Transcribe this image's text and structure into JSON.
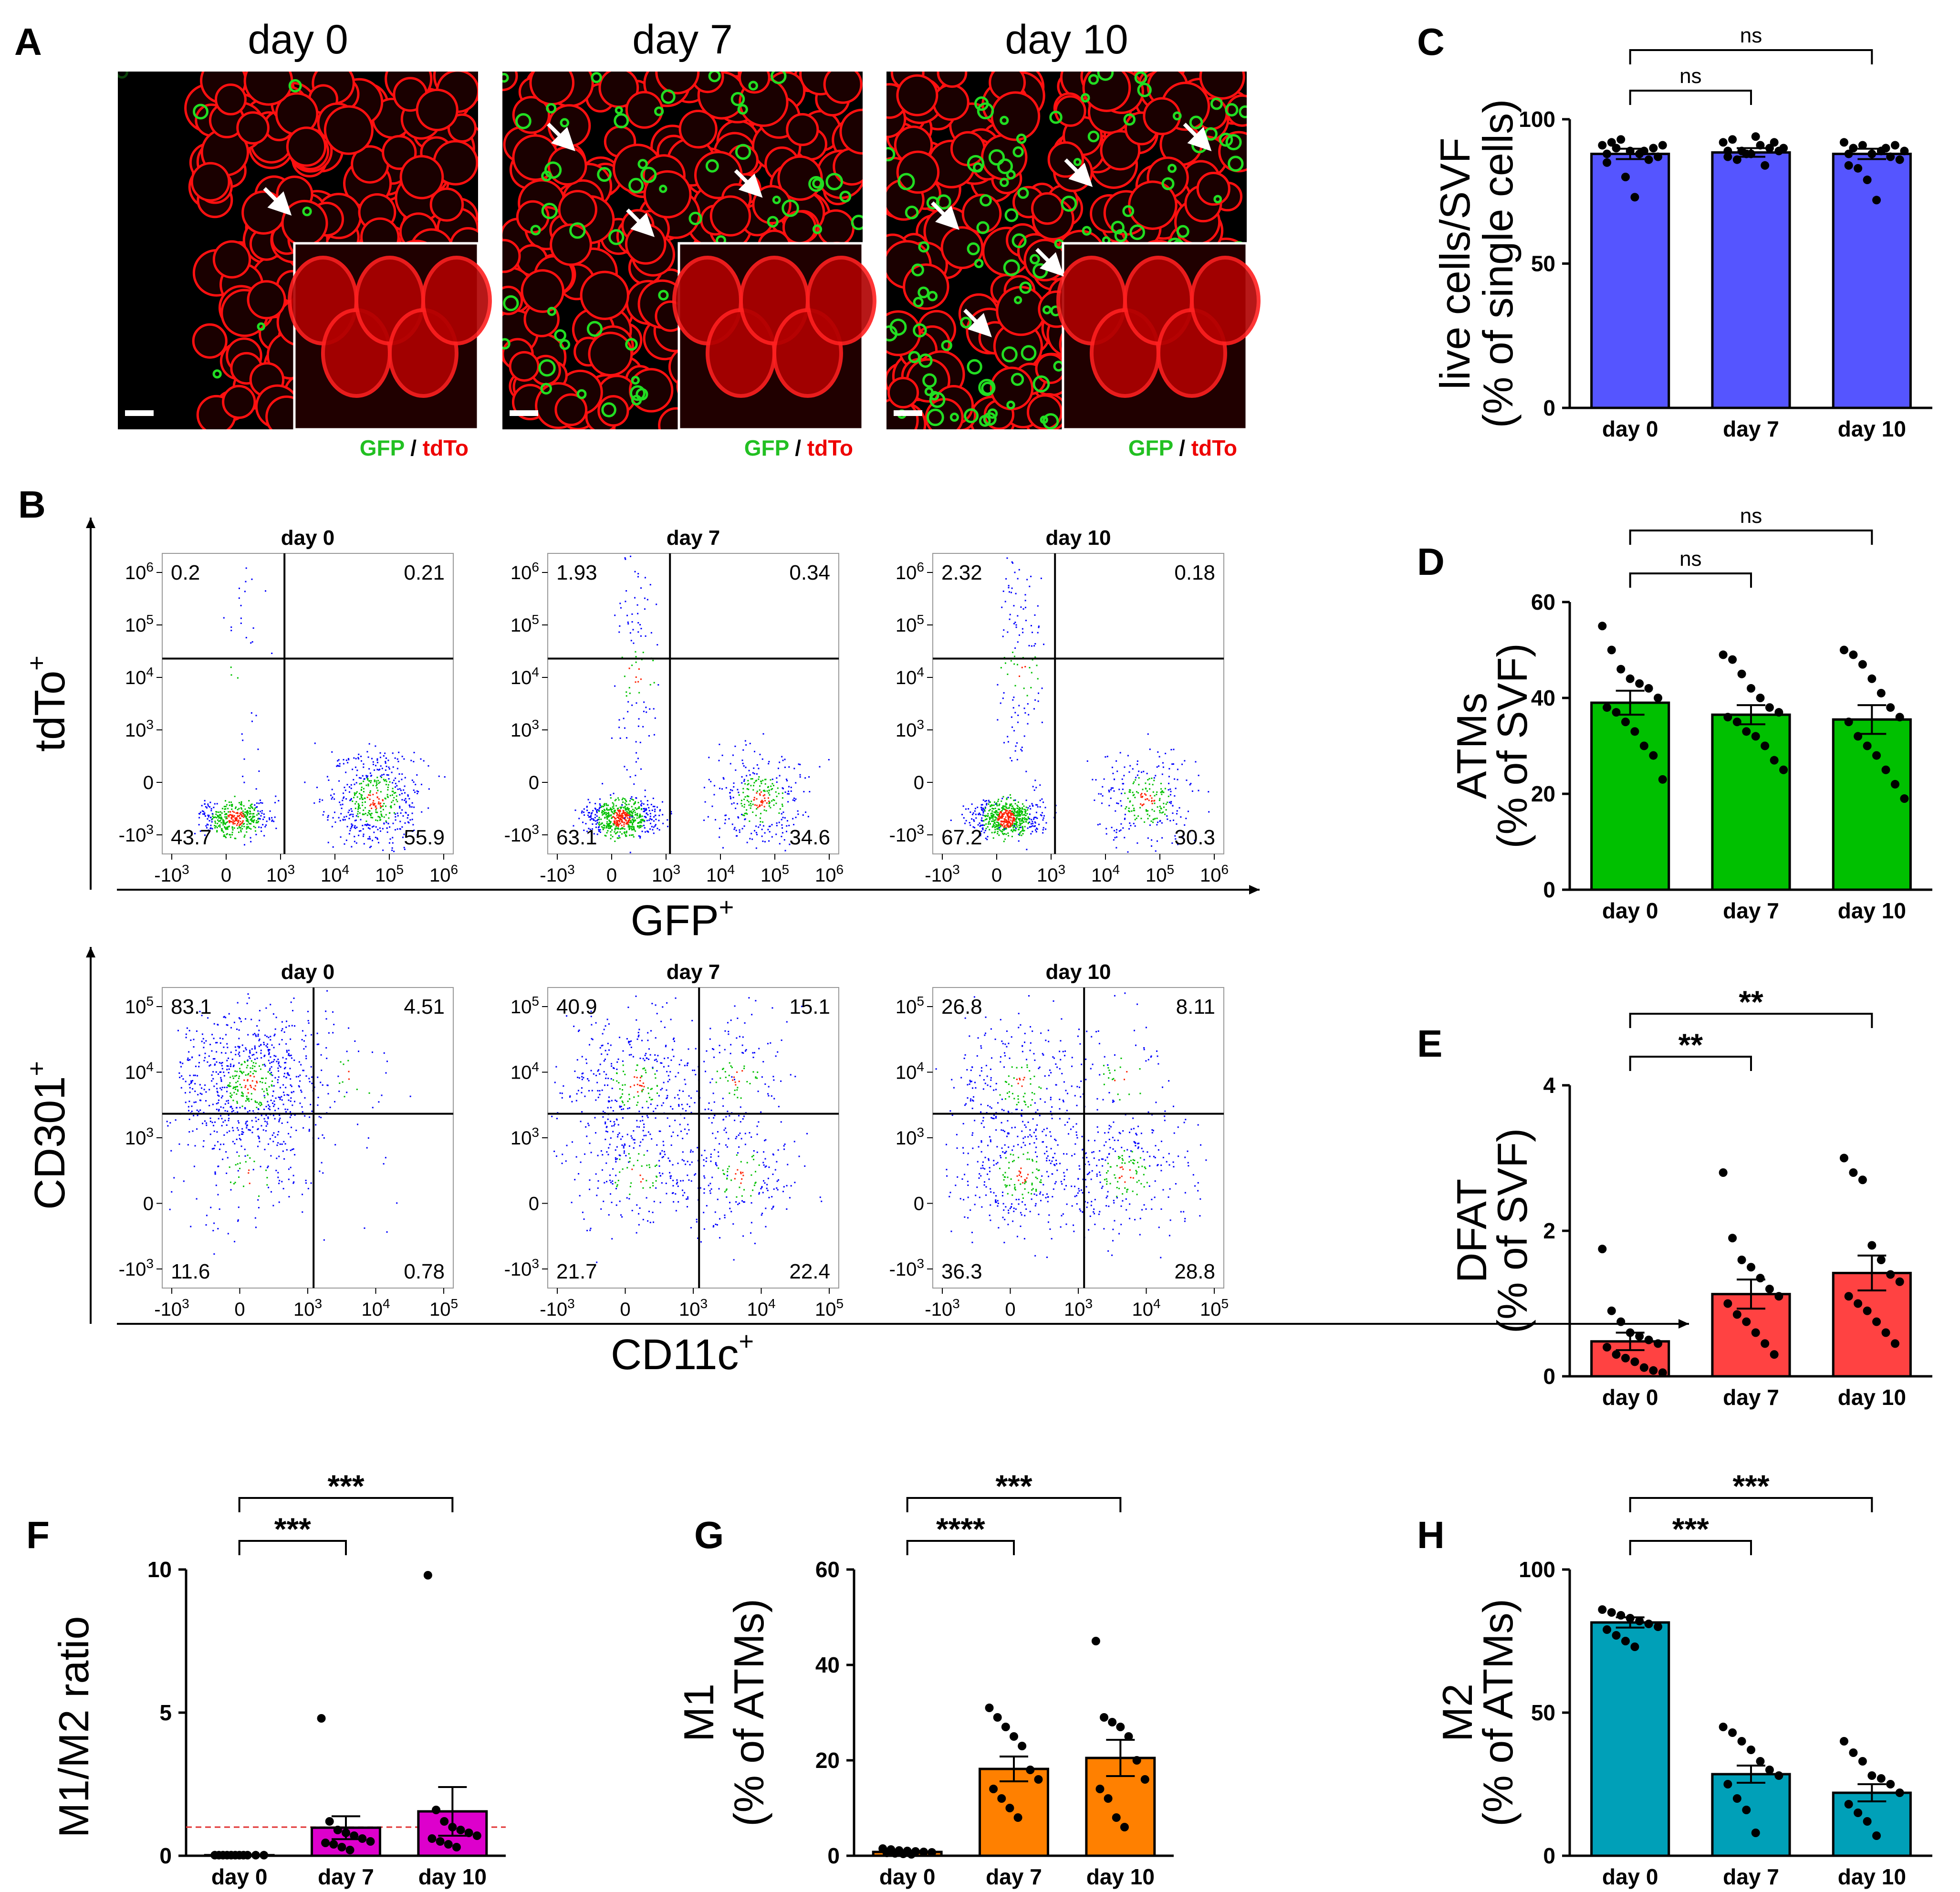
{
  "panels": {
    "A": {
      "letter": "A",
      "legend_green": "GFP",
      "legend_sep": " / ",
      "legend_red": "tdTo",
      "images": [
        {
          "title": "day 0",
          "gfp_level": 0.05
        },
        {
          "title": "day 7",
          "gfp_level": 0.4
        },
        {
          "title": "day 10",
          "gfp_level": 0.8
        }
      ]
    },
    "B": {
      "letter": "B",
      "top_ylabel": "tdTo",
      "top_xlabel": "GFP",
      "bottom_ylabel": "CD301",
      "bottom_xlabel": "CD11c",
      "superscript": "+"
    }
  },
  "colors": {
    "C": "#5555ff",
    "D": "#00c000",
    "E": "#ff4242",
    "F": "#dd00cc",
    "G": "#ff8000",
    "H": "#00a0b8",
    "ref_line": "#e03030",
    "flow_low": "#0000ff",
    "flow_mid": "#00c000",
    "flow_high": "#ff2000"
  },
  "chart_data": [
    {
      "id": "B-top",
      "type": "scatter",
      "xlabel": "GFP",
      "ylabel": "tdTo",
      "x_ticks": [
        "-10^3",
        "0",
        "10^3",
        "10^4",
        "10^5",
        "10^6"
      ],
      "y_ticks": [
        "10^6",
        "10^5",
        "10^4",
        "10^3",
        "0",
        "-10^3"
      ],
      "plots": [
        {
          "title": "day 0",
          "quadrants": {
            "ul": "0.2",
            "ur": "0.21",
            "ll": "43.7",
            "lr": "55.9"
          }
        },
        {
          "title": "day 7",
          "quadrants": {
            "ul": "1.93",
            "ur": "0.34",
            "ll": "63.1",
            "lr": "34.6"
          }
        },
        {
          "title": "day 10",
          "quadrants": {
            "ul": "2.32",
            "ur": "0.18",
            "ll": "67.2",
            "lr": "30.3"
          }
        }
      ]
    },
    {
      "id": "B-bottom",
      "type": "scatter",
      "xlabel": "CD11c",
      "ylabel": "CD301",
      "x_ticks": [
        "-10^3",
        "0",
        "10^3",
        "10^4",
        "10^5"
      ],
      "y_ticks": [
        "10^5",
        "10^4",
        "10^3",
        "0",
        "-10^3"
      ],
      "plots": [
        {
          "title": "day 0",
          "quadrants": {
            "ul": "83.1",
            "ur": "4.51",
            "ll": "11.6",
            "lr": "0.78"
          }
        },
        {
          "title": "day 7",
          "quadrants": {
            "ul": "40.9",
            "ur": "15.1",
            "ll": "21.7",
            "lr": "22.4"
          }
        },
        {
          "title": "day 10",
          "quadrants": {
            "ul": "26.8",
            "ur": "8.11",
            "ll": "36.3",
            "lr": "28.8"
          }
        }
      ]
    },
    {
      "id": "C",
      "letter": "C",
      "type": "bar",
      "ylabel_lines": [
        "live cells/SVF",
        "(% of single cells)"
      ],
      "categories": [
        "day 0",
        "day 7",
        "day 10"
      ],
      "values": [
        88,
        88.5,
        88
      ],
      "sem": [
        1.8,
        1.5,
        1.8
      ],
      "yticks": [
        0,
        50,
        100
      ],
      "ylim": [
        0,
        100
      ],
      "points": [
        [
          91,
          92,
          93,
          89,
          88,
          86,
          87,
          85,
          90,
          80,
          73,
          89,
          90,
          91,
          88
        ],
        [
          92,
          93,
          89,
          88,
          91,
          90,
          89,
          87,
          86,
          88,
          94,
          84,
          92,
          90,
          89
        ],
        [
          92,
          90,
          91,
          88,
          89,
          87,
          86,
          84,
          83,
          79,
          72,
          90,
          91,
          89,
          88
        ]
      ],
      "sig": [
        {
          "from": 0,
          "to": 1,
          "label": "ns"
        },
        {
          "from": 0,
          "to": 2,
          "label": "ns"
        }
      ]
    },
    {
      "id": "D",
      "letter": "D",
      "type": "bar",
      "ylabel_lines": [
        "ATMs",
        "(% of SVF)"
      ],
      "categories": [
        "day 0",
        "day 7",
        "day 10"
      ],
      "values": [
        39,
        36.5,
        35.5
      ],
      "sem": [
        2.5,
        2,
        3
      ],
      "yticks": [
        0,
        20,
        40,
        60
      ],
      "ylim": [
        0,
        60
      ],
      "points": [
        [
          55,
          50,
          46,
          44,
          43,
          42,
          40,
          38,
          37,
          35,
          33,
          30,
          28,
          23
        ],
        [
          49,
          48,
          45,
          42,
          40,
          38,
          37,
          36,
          35,
          33,
          32,
          30,
          27,
          25
        ],
        [
          50,
          49,
          47,
          44,
          41,
          38,
          36,
          35,
          32,
          30,
          28,
          25,
          22,
          19
        ]
      ],
      "sig": [
        {
          "from": 0,
          "to": 1,
          "label": "ns"
        },
        {
          "from": 0,
          "to": 2,
          "label": "ns"
        }
      ]
    },
    {
      "id": "E",
      "letter": "E",
      "type": "bar",
      "ylabel_lines": [
        "DFAT",
        "(% of SVF)"
      ],
      "categories": [
        "day 0",
        "day 7",
        "day 10"
      ],
      "values": [
        0.48,
        1.13,
        1.42
      ],
      "sem": [
        0.12,
        0.2,
        0.24
      ],
      "yticks": [
        0,
        2,
        4
      ],
      "ylim": [
        0,
        4
      ],
      "points": [
        [
          1.75,
          0.9,
          0.75,
          0.6,
          0.55,
          0.5,
          0.45,
          0.4,
          0.3,
          0.25,
          0.2,
          0.12,
          0.08,
          0.05
        ],
        [
          2.8,
          1.9,
          1.6,
          1.5,
          1.35,
          1.2,
          1.1,
          1.0,
          0.85,
          0.75,
          0.6,
          0.45,
          0.3
        ],
        [
          3.0,
          2.8,
          2.7,
          1.8,
          1.6,
          1.4,
          1.3,
          1.1,
          1.0,
          0.9,
          0.75,
          0.6,
          0.45
        ]
      ],
      "sig": [
        {
          "from": 0,
          "to": 1,
          "label": "**"
        },
        {
          "from": 0,
          "to": 2,
          "label": "**"
        }
      ]
    },
    {
      "id": "F",
      "letter": "F",
      "type": "bar",
      "ylabel_lines": [
        "M1/M2 ratio"
      ],
      "categories": [
        "day 0",
        "day 7",
        "day 10"
      ],
      "values": [
        0.02,
        0.98,
        1.55
      ],
      "sem": [
        0.01,
        0.4,
        0.85
      ],
      "yticks": [
        0,
        5,
        10
      ],
      "ylim": [
        0,
        10
      ],
      "ref_line": 1,
      "points": [
        [
          0.02,
          0.02,
          0.02,
          0.02,
          0.02,
          0.02,
          0.02,
          0.02,
          0.02,
          0.02,
          0.02
        ],
        [
          4.8,
          1.2,
          0.9,
          0.8,
          0.7,
          0.6,
          0.5,
          0.45,
          0.4,
          0.3,
          0.2
        ],
        [
          9.8,
          1.6,
          1.2,
          1.0,
          0.9,
          0.8,
          0.7,
          0.6,
          0.5,
          0.4,
          0.3
        ]
      ],
      "sig": [
        {
          "from": 0,
          "to": 1,
          "label": "***"
        },
        {
          "from": 0,
          "to": 2,
          "label": "***"
        }
      ]
    },
    {
      "id": "G",
      "letter": "G",
      "type": "bar",
      "ylabel_lines": [
        "M1",
        "(% of ATMs)"
      ],
      "categories": [
        "day 0",
        "day 7",
        "day 10"
      ],
      "values": [
        0.8,
        18.2,
        20.5
      ],
      "sem": [
        0.2,
        2.6,
        3.8
      ],
      "yticks": [
        0,
        20,
        40,
        60
      ],
      "ylim": [
        0,
        60
      ],
      "points": [
        [
          1.5,
          1.3,
          1.1,
          1.0,
          0.9,
          0.8,
          0.7,
          0.6,
          0.5,
          0.4,
          0.3
        ],
        [
          31,
          29,
          27,
          25,
          23,
          18,
          16,
          14,
          12,
          10,
          8
        ],
        [
          45,
          29,
          28,
          27,
          25,
          20,
          16,
          14,
          12,
          8,
          6
        ]
      ],
      "sig": [
        {
          "from": 0,
          "to": 1,
          "label": "****"
        },
        {
          "from": 0,
          "to": 2,
          "label": "***"
        }
      ]
    },
    {
      "id": "H",
      "letter": "H",
      "type": "bar",
      "ylabel_lines": [
        "M2",
        "(% of ATMs)"
      ],
      "categories": [
        "day 0",
        "day 7",
        "day 10"
      ],
      "values": [
        81.5,
        28.5,
        22
      ],
      "sem": [
        1.8,
        3,
        3
      ],
      "yticks": [
        0,
        50,
        100
      ],
      "ylim": [
        0,
        100
      ],
      "points": [
        [
          86,
          85,
          84,
          83,
          82,
          81,
          80,
          79,
          77,
          75,
          73
        ],
        [
          45,
          43,
          40,
          37,
          33,
          30,
          28,
          25,
          20,
          16,
          8
        ],
        [
          40,
          36,
          33,
          28,
          27,
          25,
          22,
          18,
          15,
          12,
          7
        ]
      ],
      "sig": [
        {
          "from": 0,
          "to": 1,
          "label": "***"
        },
        {
          "from": 0,
          "to": 2,
          "label": "***"
        }
      ]
    }
  ]
}
